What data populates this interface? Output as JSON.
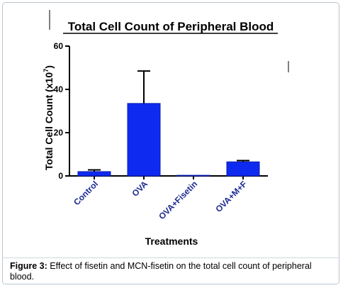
{
  "chart_data": {
    "type": "bar",
    "title": "Total Cell Count of Peripheral Blood",
    "xlabel": "Treatments",
    "ylabel_main": "Total Cell  Count (x10",
    "ylabel_exp": "7",
    "ylabel_close": ")",
    "categories": [
      "Control",
      "OVA",
      "OVA+Fisetin",
      "OVA+M+F"
    ],
    "values": [
      2.0,
      33.5,
      0.3,
      6.5
    ],
    "errors": [
      0.8,
      15.0,
      0.0,
      0.6
    ],
    "ylim": [
      0,
      60
    ],
    "yticks": [
      "0",
      "20",
      "40",
      "60"
    ],
    "grid": false,
    "bar_color": "#0f2af0"
  },
  "caption": {
    "label": "Figure 3:",
    "text": " Effect of fisetin and MCN-fisetin on the total cell count of peripheral blood."
  }
}
